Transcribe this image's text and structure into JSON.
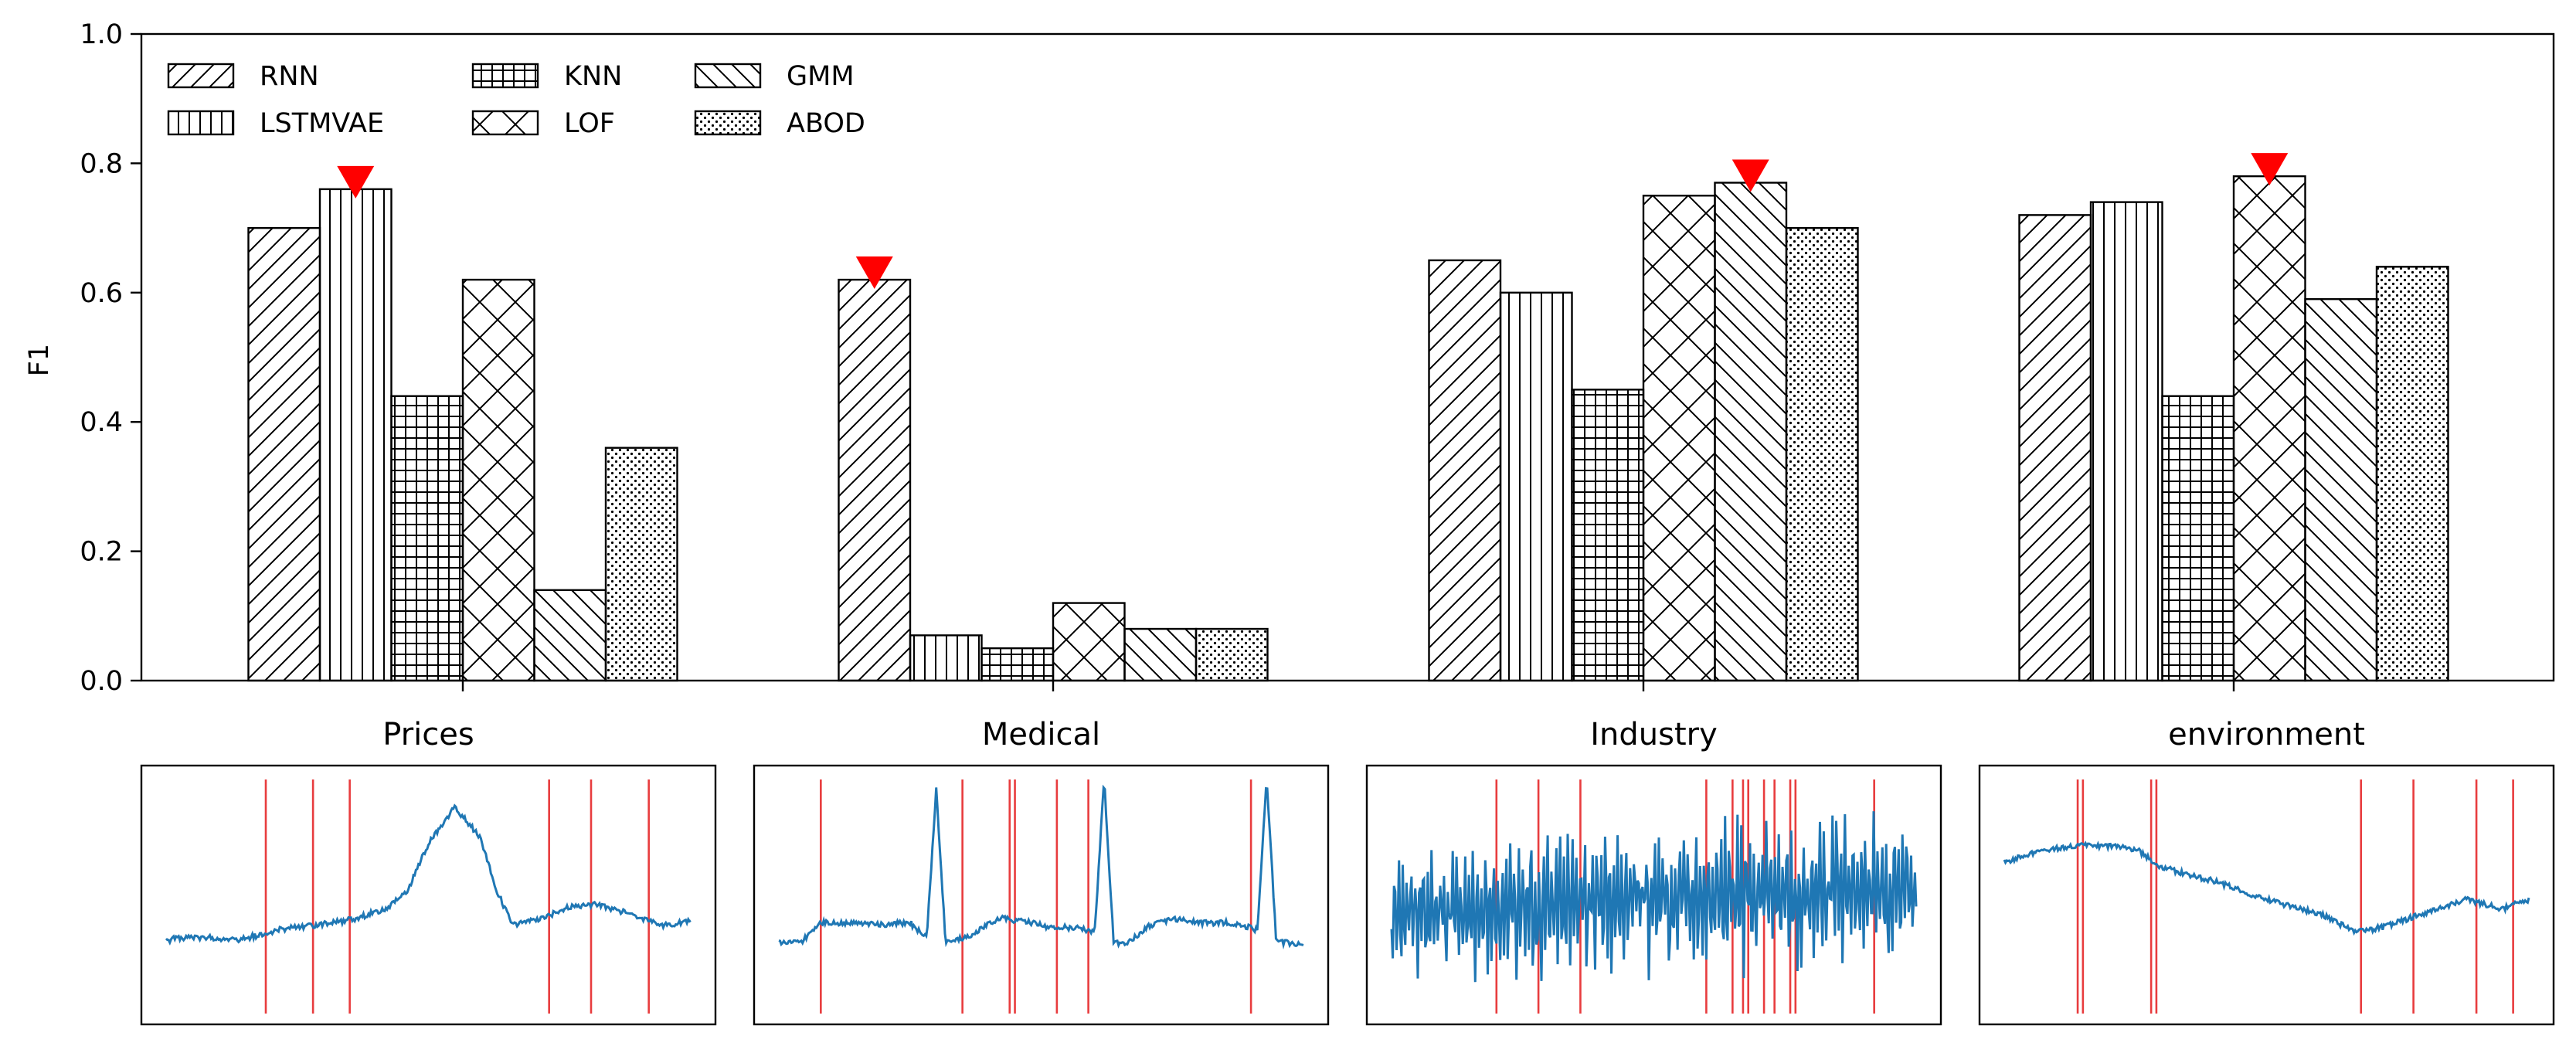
{
  "chart_data": [
    {
      "type": "bar",
      "ylabel": "F1",
      "ylim": [
        0,
        1.0
      ],
      "yticks": [
        "0.0",
        "0.2",
        "0.4",
        "0.6",
        "0.8",
        "1.0"
      ],
      "grid": false,
      "legend_placement": "top-left",
      "categories": [
        "Prices",
        "Medical",
        "Industry",
        "environment"
      ],
      "series": [
        {
          "name": "RNN",
          "hatch": "diagonal",
          "values": [
            0.7,
            0.62,
            0.65,
            0.72
          ]
        },
        {
          "name": "LSTMVAE",
          "hatch": "vertical",
          "values": [
            0.76,
            0.07,
            0.6,
            0.74
          ]
        },
        {
          "name": "KNN",
          "hatch": "grid",
          "values": [
            0.44,
            0.05,
            0.45,
            0.44
          ]
        },
        {
          "name": "LOF",
          "hatch": "crosshatch",
          "values": [
            0.62,
            0.12,
            0.75,
            0.78
          ]
        },
        {
          "name": "GMM",
          "hatch": "back-diagonal",
          "values": [
            0.14,
            0.08,
            0.77,
            0.59
          ]
        },
        {
          "name": "ABOD",
          "hatch": "dots",
          "values": [
            0.36,
            0.08,
            0.7,
            0.64
          ]
        }
      ],
      "best_markers": [
        {
          "category": "Prices",
          "series": "LSTMVAE",
          "value": 0.76
        },
        {
          "category": "Medical",
          "series": "RNN",
          "value": 0.62
        },
        {
          "category": "Industry",
          "series": "GMM",
          "value": 0.77
        },
        {
          "category": "environment",
          "series": "LOF",
          "value": 0.78
        }
      ],
      "marker_color": "#ff0000"
    },
    {
      "type": "line",
      "title": "Prices",
      "line_color": "#1f77b4",
      "anomaly_color": "#e41a1c",
      "anomalies": [
        0.19,
        0.28,
        0.35,
        0.73,
        0.81,
        0.92
      ],
      "shape": [
        [
          0,
          0.5
        ],
        [
          0.02,
          0.46
        ],
        [
          0.08,
          0.46
        ],
        [
          0.14,
          0.48
        ],
        [
          0.19,
          0.42
        ],
        [
          0.22,
          0.37
        ],
        [
          0.28,
          0.33
        ],
        [
          0.35,
          0.27
        ],
        [
          0.42,
          0.15
        ],
        [
          0.46,
          -0.05
        ],
        [
          0.5,
          -0.55
        ],
        [
          0.55,
          -0.95
        ],
        [
          0.58,
          -0.75
        ],
        [
          0.6,
          -0.6
        ],
        [
          0.63,
          -0.05
        ],
        [
          0.66,
          0.32
        ],
        [
          0.72,
          0.25
        ],
        [
          0.77,
          0.12
        ],
        [
          0.82,
          0.1
        ],
        [
          0.88,
          0.2
        ],
        [
          0.95,
          0.33
        ],
        [
          1,
          0.28
        ]
      ]
    },
    {
      "type": "line",
      "title": "Medical",
      "line_color": "#1f77b4",
      "anomaly_color": "#e41a1c",
      "anomalies": [
        0.08,
        0.35,
        0.44,
        0.45,
        0.53,
        0.59,
        0.9
      ],
      "shape": [
        [
          0,
          0.52
        ],
        [
          0.04,
          0.52
        ],
        [
          0.08,
          0.3
        ],
        [
          0.12,
          0.3
        ],
        [
          0.2,
          0.32
        ],
        [
          0.25,
          0.3
        ],
        [
          0.3,
          0.55
        ],
        [
          0.36,
          0.45
        ],
        [
          0.42,
          0.25
        ],
        [
          0.48,
          0.3
        ],
        [
          0.52,
          0.35
        ],
        [
          0.56,
          0.35
        ],
        [
          0.6,
          0.4
        ],
        [
          0.66,
          0.55
        ],
        [
          0.7,
          0.35
        ],
        [
          0.75,
          0.25
        ],
        [
          0.8,
          0.3
        ],
        [
          0.86,
          0.3
        ],
        [
          0.9,
          0.35
        ],
        [
          0.95,
          0.5
        ],
        [
          1,
          0.55
        ]
      ],
      "spikes": [
        0.3,
        0.62,
        0.93
      ]
    },
    {
      "type": "line",
      "title": "Industry",
      "line_color": "#1f77b4",
      "anomaly_color": "#e41a1c",
      "anomalies": [
        0.2,
        0.28,
        0.36,
        0.6,
        0.65,
        0.67,
        0.68,
        0.71,
        0.73,
        0.76,
        0.77,
        0.92
      ],
      "shape": [
        [
          0,
          0.2
        ],
        [
          0.2,
          0.15
        ],
        [
          0.4,
          0.05
        ],
        [
          0.6,
          0.0
        ],
        [
          0.8,
          -0.05
        ],
        [
          1,
          0.0
        ]
      ]
    },
    {
      "type": "line",
      "title": "environment",
      "line_color": "#1f77b4",
      "anomaly_color": "#e41a1c",
      "anomalies": [
        0.14,
        0.15,
        0.28,
        0.29,
        0.68,
        0.78,
        0.9,
        0.97
      ],
      "shape": [
        [
          0,
          -0.35
        ],
        [
          0.05,
          -0.45
        ],
        [
          0.15,
          -0.55
        ],
        [
          0.25,
          -0.5
        ],
        [
          0.3,
          -0.3
        ],
        [
          0.4,
          -0.15
        ],
        [
          0.5,
          0.05
        ],
        [
          0.6,
          0.2
        ],
        [
          0.67,
          0.4
        ],
        [
          0.72,
          0.35
        ],
        [
          0.8,
          0.2
        ],
        [
          0.88,
          0.05
        ],
        [
          0.95,
          0.15
        ],
        [
          1,
          0.05
        ]
      ]
    }
  ]
}
